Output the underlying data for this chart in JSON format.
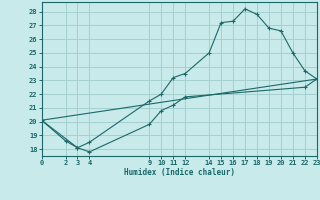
{
  "xlabel": "Humidex (Indice chaleur)",
  "bg_color": "#c8eaea",
  "grid_color": "#a0cccc",
  "line_color": "#1a6868",
  "xlim": [
    0,
    23
  ],
  "ylim": [
    17.5,
    28.7
  ],
  "xticks": [
    0,
    2,
    3,
    4,
    9,
    10,
    11,
    12,
    14,
    15,
    16,
    17,
    18,
    19,
    20,
    21,
    22,
    23
  ],
  "yticks": [
    18,
    19,
    20,
    21,
    22,
    23,
    24,
    25,
    26,
    27,
    28
  ],
  "line1": {
    "x": [
      0,
      2,
      3,
      4,
      9,
      10,
      11,
      12,
      14,
      15,
      16,
      17,
      18,
      19,
      20,
      21,
      22,
      23
    ],
    "y": [
      20.1,
      18.6,
      18.1,
      18.5,
      21.5,
      22.0,
      23.2,
      23.5,
      25.0,
      27.2,
      27.3,
      28.2,
      27.8,
      26.8,
      26.6,
      25.0,
      23.7,
      23.1
    ]
  },
  "line2": {
    "x": [
      0,
      3,
      4,
      9,
      10,
      11,
      12,
      22,
      23
    ],
    "y": [
      20.1,
      18.1,
      17.8,
      19.8,
      20.8,
      21.2,
      21.8,
      22.5,
      23.1
    ]
  },
  "line3": {
    "x": [
      0,
      23
    ],
    "y": [
      20.1,
      23.1
    ]
  }
}
